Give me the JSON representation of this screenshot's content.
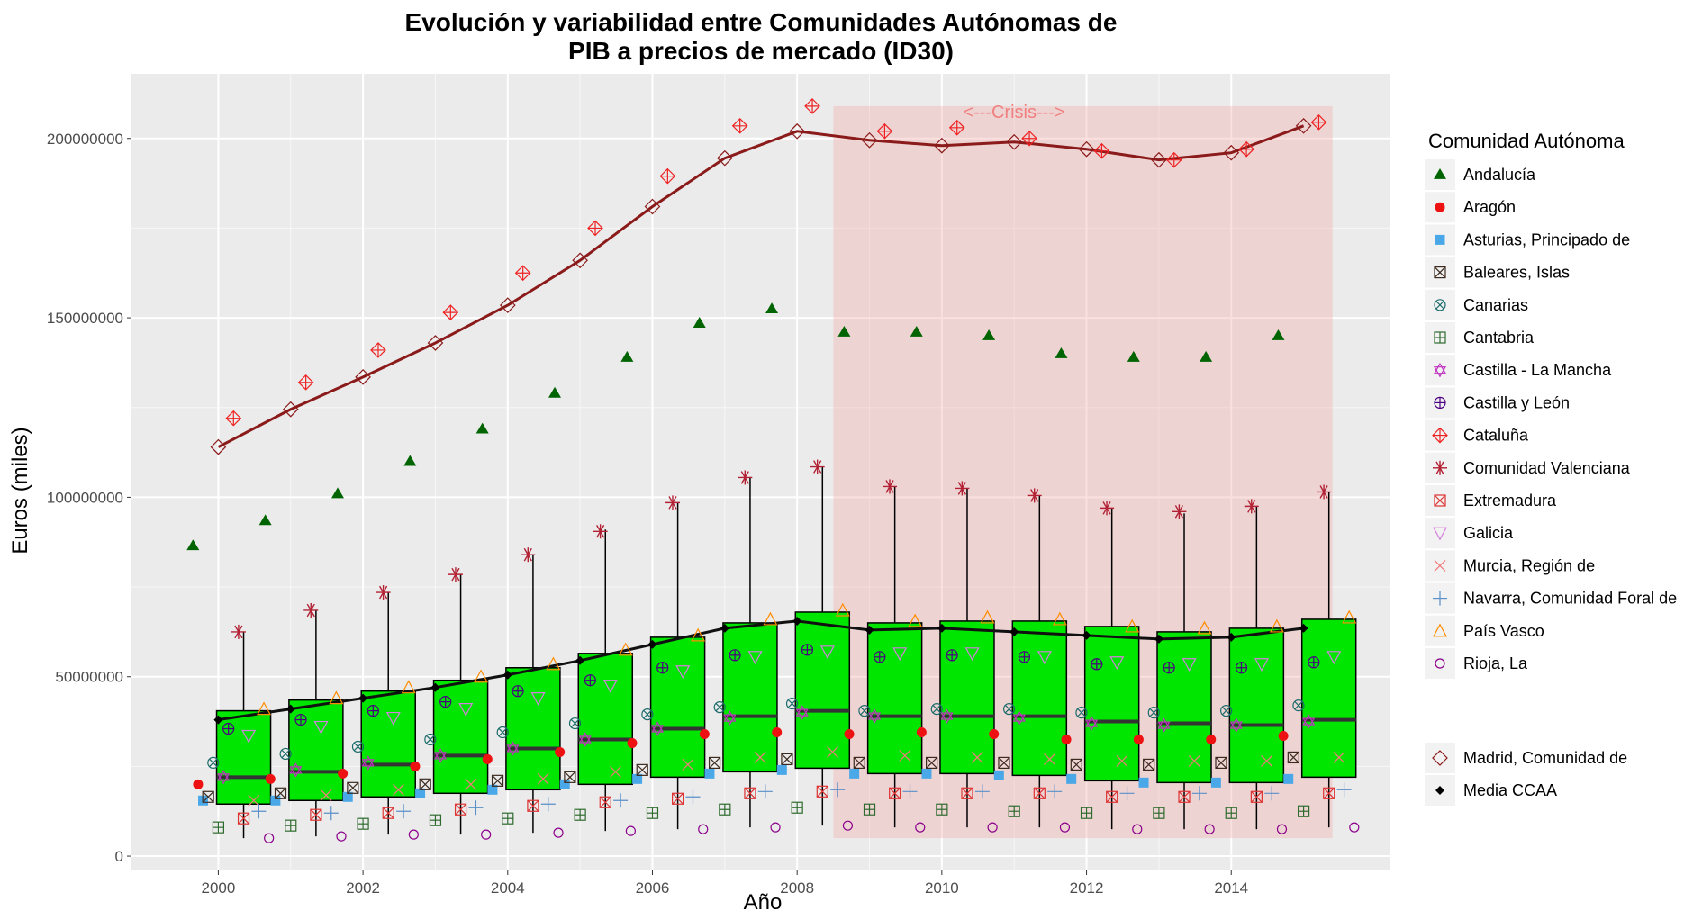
{
  "chart_data": {
    "type": "box",
    "title_line1": "Evolución y variabilidad entre Comunidades Autónomas de",
    "title_line2": "PIB a precios de mercado (ID30)",
    "xlabel": "Año",
    "ylabel": "Euros (miles)",
    "x_ticks": [
      2000,
      2002,
      2004,
      2006,
      2008,
      2010,
      2012,
      2014
    ],
    "y_ticks": [
      0,
      50000000,
      100000000,
      150000000,
      200000000
    ],
    "y_tick_labels": [
      "0",
      "50000000",
      "100000000",
      "150000000",
      "200000000"
    ],
    "xlim": [
      1998.8,
      2016.2
    ],
    "ylim": [
      -4000000,
      218000000
    ],
    "grid": true,
    "legend_title": "Comunidad Autónoma",
    "legend_position": "right",
    "crisis_region": {
      "x": [
        2008.5,
        2015.4
      ],
      "y": [
        5000000,
        209000000
      ],
      "label": "<---Crisis--->",
      "color": "#f4a6a6"
    },
    "box_color": "#00e600",
    "years": [
      2000,
      2001,
      2002,
      2003,
      2004,
      2005,
      2006,
      2007,
      2008,
      2009,
      2010,
      2011,
      2012,
      2013,
      2014,
      2015
    ],
    "boxes": [
      {
        "year": 2000,
        "min": 5000000,
        "q1": 14500000,
        "median": 22000000,
        "q3": 40500000,
        "max": 62500000
      },
      {
        "year": 2001,
        "min": 5500000,
        "q1": 15500000,
        "median": 23500000,
        "q3": 43500000,
        "max": 68500000
      },
      {
        "year": 2002,
        "min": 6000000,
        "q1": 16500000,
        "median": 25500000,
        "q3": 46000000,
        "max": 73500000
      },
      {
        "year": 2003,
        "min": 6000000,
        "q1": 17500000,
        "median": 28000000,
        "q3": 49000000,
        "max": 78500000
      },
      {
        "year": 2004,
        "min": 6500000,
        "q1": 18500000,
        "median": 30000000,
        "q3": 52500000,
        "max": 84000000
      },
      {
        "year": 2005,
        "min": 7000000,
        "q1": 20000000,
        "median": 32500000,
        "q3": 56500000,
        "max": 91000000
      },
      {
        "year": 2006,
        "min": 7500000,
        "q1": 22000000,
        "median": 35500000,
        "q3": 61000000,
        "max": 98500000
      },
      {
        "year": 2007,
        "min": 8000000,
        "q1": 23500000,
        "median": 39000000,
        "q3": 65000000,
        "max": 105500000
      },
      {
        "year": 2008,
        "min": 8500000,
        "q1": 24500000,
        "median": 40500000,
        "q3": 68000000,
        "max": 108500000
      },
      {
        "year": 2009,
        "min": 8000000,
        "q1": 23000000,
        "median": 39000000,
        "q3": 65000000,
        "max": 103000000
      },
      {
        "year": 2010,
        "min": 8000000,
        "q1": 23000000,
        "median": 39000000,
        "q3": 65500000,
        "max": 102500000
      },
      {
        "year": 2011,
        "min": 8000000,
        "q1": 22500000,
        "median": 39000000,
        "q3": 65500000,
        "max": 100500000
      },
      {
        "year": 2012,
        "min": 7500000,
        "q1": 21000000,
        "median": 37500000,
        "q3": 64000000,
        "max": 97000000
      },
      {
        "year": 2013,
        "min": 7500000,
        "q1": 20500000,
        "median": 37000000,
        "q3": 62500000,
        "max": 95500000
      },
      {
        "year": 2014,
        "min": 7500000,
        "q1": 20500000,
        "median": 36500000,
        "q3": 63500000,
        "max": 97500000
      },
      {
        "year": 2015,
        "min": 8000000,
        "q1": 22000000,
        "median": 38000000,
        "q3": 66000000,
        "max": 101500000
      }
    ],
    "series": [
      {
        "name": "Andalucía",
        "shape": "triangle",
        "color": "#006400",
        "values": [
          86500000,
          93500000,
          101000000,
          110000000,
          119000000,
          129000000,
          139000000,
          148500000,
          152500000,
          146000000,
          146000000,
          145000000,
          140000000,
          139000000,
          139000000,
          145000000
        ]
      },
      {
        "name": "Aragón",
        "shape": "dot",
        "color": "#ee1111",
        "values": [
          20000000,
          21500000,
          23000000,
          25000000,
          27000000,
          29000000,
          31500000,
          34000000,
          34500000,
          34000000,
          34500000,
          34000000,
          32500000,
          32500000,
          32500000,
          33500000
        ]
      },
      {
        "name": "Asturias, Principado de",
        "shape": "square",
        "color": "#4aa8e8",
        "values": [
          15500000,
          15500000,
          16500000,
          17500000,
          18500000,
          20000000,
          21500000,
          23000000,
          24000000,
          23000000,
          23000000,
          22500000,
          21500000,
          20500000,
          20500000,
          21500000
        ]
      },
      {
        "name": "Baleares, Islas",
        "shape": "square-x",
        "color": "#3d2b1f",
        "values": [
          16500000,
          17500000,
          19000000,
          20000000,
          21000000,
          22000000,
          24000000,
          26000000,
          27000000,
          26000000,
          26000000,
          26000000,
          25500000,
          25500000,
          26000000,
          27500000
        ]
      },
      {
        "name": "Canarias",
        "shape": "circle-x",
        "color": "#1c6b6b",
        "values": [
          26000000,
          28500000,
          30500000,
          32500000,
          34500000,
          37000000,
          39500000,
          41500000,
          42500000,
          40500000,
          41000000,
          41000000,
          40000000,
          40000000,
          40500000,
          42000000
        ]
      },
      {
        "name": "Cantabria",
        "shape": "square-plus",
        "color": "#2e6b2e",
        "values": [
          8000000,
          8500000,
          9000000,
          10000000,
          10500000,
          11500000,
          12000000,
          13000000,
          13500000,
          13000000,
          13000000,
          12500000,
          12000000,
          12000000,
          12000000,
          12500000
        ]
      },
      {
        "name": "Castilla - La Mancha",
        "shape": "star6",
        "color": "#c030c0",
        "values": [
          22000000,
          24000000,
          26000000,
          28000000,
          30000000,
          32500000,
          35500000,
          38500000,
          40000000,
          39000000,
          39000000,
          38500000,
          37000000,
          36500000,
          36500000,
          37500000
        ]
      },
      {
        "name": "Castilla y León",
        "shape": "circle-plus",
        "color": "#4b0082",
        "values": [
          35500000,
          38000000,
          40500000,
          43000000,
          46000000,
          49000000,
          52500000,
          56000000,
          57500000,
          55500000,
          56000000,
          55500000,
          53500000,
          52500000,
          52500000,
          54000000
        ]
      },
      {
        "name": "Cataluña",
        "shape": "diamond-plus",
        "color": "#ee2222",
        "values": [
          122000000,
          132000000,
          141000000,
          151500000,
          162500000,
          175000000,
          189500000,
          203500000,
          209000000,
          202000000,
          203000000,
          200000000,
          196500000,
          194000000,
          197000000,
          204500000
        ]
      },
      {
        "name": "Comunidad Valenciana",
        "shape": "asterisk",
        "color": "#b22234",
        "values": [
          62500000,
          68500000,
          73500000,
          78500000,
          84000000,
          90500000,
          98500000,
          105500000,
          108500000,
          103000000,
          102500000,
          100500000,
          97000000,
          96000000,
          97500000,
          101500000
        ]
      },
      {
        "name": "Extremadura",
        "shape": "square-x",
        "color": "#dd3333",
        "values": [
          10500000,
          11500000,
          12000000,
          13000000,
          14000000,
          15000000,
          16000000,
          17500000,
          18000000,
          17500000,
          17500000,
          17500000,
          16500000,
          16500000,
          16500000,
          17500000
        ]
      },
      {
        "name": "Galicia",
        "shape": "triangle-down",
        "color": "#d680e0",
        "values": [
          33500000,
          36000000,
          38500000,
          41000000,
          44000000,
          47500000,
          51500000,
          55500000,
          57000000,
          56500000,
          56500000,
          55500000,
          54000000,
          53500000,
          53500000,
          55500000
        ]
      },
      {
        "name": "Murcia, Región de",
        "shape": "cross",
        "color": "#f47b7b",
        "values": [
          15500000,
          17000000,
          18500000,
          20000000,
          21500000,
          23500000,
          25500000,
          27500000,
          29000000,
          28000000,
          27500000,
          27000000,
          26500000,
          26500000,
          26500000,
          27500000
        ]
      },
      {
        "name": "Navarra, Comunidad Foral de",
        "shape": "plus",
        "color": "#5a8fc8",
        "values": [
          12500000,
          12000000,
          12500000,
          13500000,
          14500000,
          15500000,
          16500000,
          18000000,
          18500000,
          18000000,
          18000000,
          18000000,
          17500000,
          17500000,
          17500000,
          18500000
        ]
      },
      {
        "name": "País Vasco",
        "shape": "triangle-open",
        "color": "#ff8c00",
        "values": [
          41000000,
          44000000,
          47000000,
          50000000,
          53500000,
          57500000,
          61500000,
          66000000,
          68500000,
          65500000,
          66500000,
          66000000,
          64000000,
          63500000,
          64000000,
          66500000
        ]
      },
      {
        "name": "Rioja, La",
        "shape": "circle",
        "color": "#8b008b",
        "values": [
          5000000,
          5500000,
          6000000,
          6000000,
          6500000,
          7000000,
          7500000,
          8000000,
          8500000,
          8000000,
          8000000,
          8000000,
          7500000,
          7500000,
          7500000,
          8000000
        ]
      }
    ],
    "madrid": {
      "name": "Madrid, Comunidad de",
      "color": "#8b1a1a",
      "values": [
        114000000,
        124500000,
        133500000,
        143000000,
        153500000,
        166000000,
        181000000,
        194500000,
        202000000,
        199500000,
        198000000,
        199000000,
        197000000,
        194000000,
        196000000,
        203500000
      ]
    },
    "media": {
      "name": "Media CCAA",
      "color": "#000000",
      "values": [
        38000000,
        41000000,
        44000000,
        47000000,
        50500000,
        54500000,
        59000000,
        63500000,
        65500000,
        63000000,
        63500000,
        62500000,
        61500000,
        60500000,
        61000000,
        63500000
      ]
    }
  }
}
